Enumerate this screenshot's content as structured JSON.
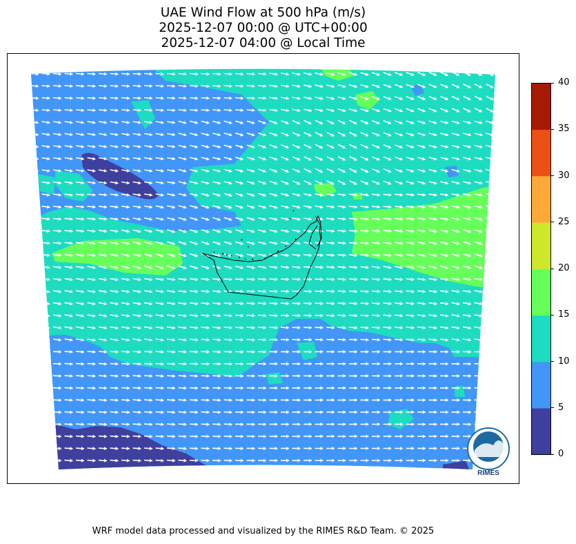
{
  "title": {
    "line1": "UAE Wind Flow at 500 hPa (m/s)",
    "line2": "2025-12-07 00:00 @ UTC+00:00",
    "line3": "2025-12-07 04:00 @ Local Time"
  },
  "colorbar": {
    "ticks": [
      "0",
      "5",
      "10",
      "15",
      "20",
      "25",
      "30",
      "35",
      "40"
    ],
    "colors": [
      "#3f3f9e",
      "#4196f7",
      "#1ddcc0",
      "#66ff5a",
      "#cde72a",
      "#fda938",
      "#eb5014",
      "#a71b04"
    ]
  },
  "logo": {
    "text": "RIMES",
    "ring_text": "Regional Integrated Multi-Hazard Early Warning System"
  },
  "footer": "WRF model data processed and visualized by the RIMES R&D Team. © 2025",
  "legend_colors": {
    "speed_0_5": "#3f3f9e",
    "speed_5_10": "#4196f7",
    "speed_10_15": "#1ddcc0",
    "speed_15_20": "#66ff5a",
    "arrows": "#ffffff",
    "border": "#000000"
  }
}
